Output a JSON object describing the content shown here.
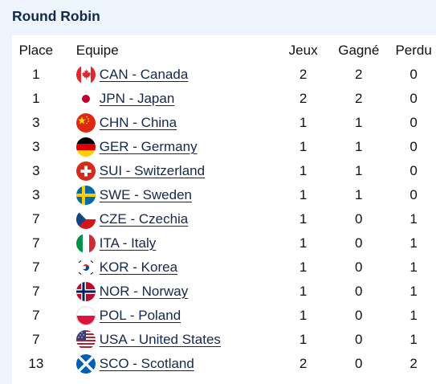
{
  "header": {
    "title": "Round Robin"
  },
  "columns": {
    "place": "Place",
    "team": "Equipe",
    "games": "Jeux",
    "won": "Gagné",
    "lost": "Perdu"
  },
  "rows": [
    {
      "place": "1",
      "team": "CAN - Canada",
      "games": "2",
      "won": "2",
      "lost": "0",
      "flag": "canada-flag-icon"
    },
    {
      "place": "1",
      "team": "JPN - Japan",
      "games": "2",
      "won": "2",
      "lost": "0",
      "flag": "japan-flag-icon"
    },
    {
      "place": "3",
      "team": "CHN - China",
      "games": "1",
      "won": "1",
      "lost": "0",
      "flag": "china-flag-icon"
    },
    {
      "place": "3",
      "team": "GER - Germany",
      "games": "1",
      "won": "1",
      "lost": "0",
      "flag": "germany-flag-icon"
    },
    {
      "place": "3",
      "team": "SUI - Switzerland",
      "games": "1",
      "won": "1",
      "lost": "0",
      "flag": "switzerland-flag-icon"
    },
    {
      "place": "3",
      "team": "SWE - Sweden",
      "games": "1",
      "won": "1",
      "lost": "0",
      "flag": "sweden-flag-icon"
    },
    {
      "place": "7",
      "team": "CZE - Czechia",
      "games": "1",
      "won": "0",
      "lost": "1",
      "flag": "czechia-flag-icon"
    },
    {
      "place": "7",
      "team": "ITA - Italy",
      "games": "1",
      "won": "0",
      "lost": "1",
      "flag": "italy-flag-icon"
    },
    {
      "place": "7",
      "team": "KOR - Korea",
      "games": "1",
      "won": "0",
      "lost": "1",
      "flag": "korea-flag-icon"
    },
    {
      "place": "7",
      "team": "NOR - Norway",
      "games": "1",
      "won": "0",
      "lost": "1",
      "flag": "norway-flag-icon"
    },
    {
      "place": "7",
      "team": "POL - Poland",
      "games": "1",
      "won": "0",
      "lost": "1",
      "flag": "poland-flag-icon"
    },
    {
      "place": "7",
      "team": "USA - United States",
      "games": "1",
      "won": "0",
      "lost": "1",
      "flag": "usa-flag-icon"
    },
    {
      "place": "13",
      "team": "SCO - Scotland",
      "games": "2",
      "won": "0",
      "lost": "2",
      "flag": "scotland-flag-icon"
    }
  ],
  "colors": {
    "title": "#13294b",
    "link": "#13294b",
    "panel_bg": "#eef4fb"
  }
}
